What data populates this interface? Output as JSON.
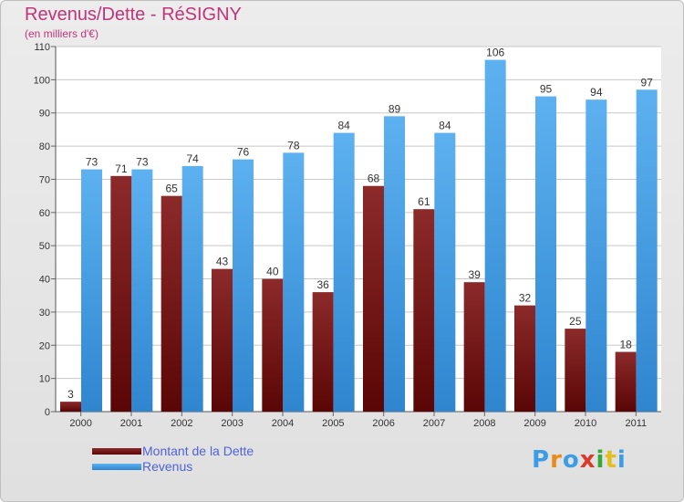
{
  "title": "Revenus/Dette - RéSIGNY",
  "subtitle": "(en milliers d'€)",
  "logo_text": "Proxiti",
  "colors": {
    "title": "#c0347a",
    "dette": "#7a1a1a",
    "revenus": "#3d9de4",
    "legend_text": "#4f63d9",
    "grid": "#c8c8c8",
    "axis_text": "#333333"
  },
  "chart_data": {
    "type": "bar",
    "title": "Revenus/Dette - RéSIGNY",
    "subtitle": "(en milliers d'€)",
    "categories": [
      "2000",
      "2001",
      "2002",
      "2003",
      "2004",
      "2005",
      "2006",
      "2007",
      "2008",
      "2009",
      "2010",
      "2011"
    ],
    "series": [
      {
        "name": "Montant de la Dette",
        "color": "#7a1a1a",
        "values": [
          3,
          71,
          65,
          43,
          40,
          36,
          68,
          61,
          39,
          32,
          25,
          18
        ]
      },
      {
        "name": "Revenus",
        "color": "#3d9de4",
        "values": [
          73,
          73,
          74,
          76,
          78,
          84,
          89,
          84,
          106,
          95,
          94,
          97
        ]
      }
    ],
    "ylim": [
      0,
      110
    ],
    "yticks": [
      0,
      10,
      20,
      30,
      40,
      50,
      60,
      70,
      80,
      90,
      100,
      110
    ],
    "grid": true,
    "legend": "bottom-left"
  }
}
